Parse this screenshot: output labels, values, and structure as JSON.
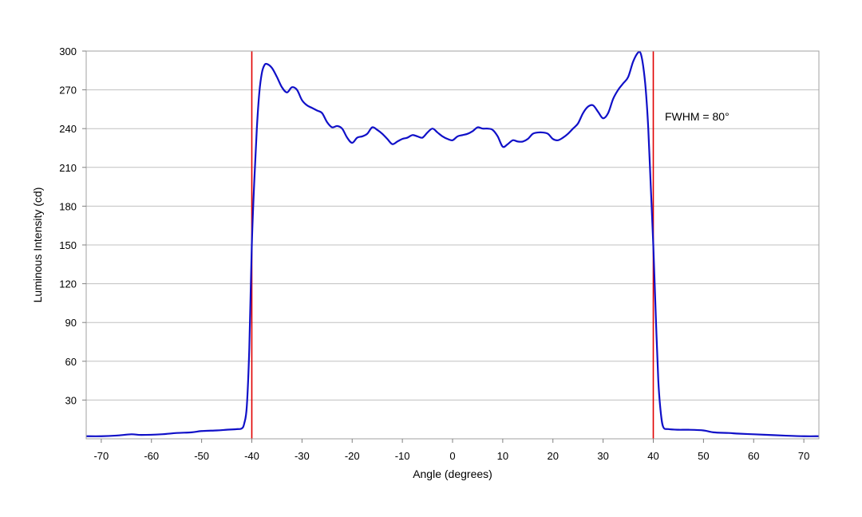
{
  "chart_data": {
    "type": "line",
    "xlabel": "Angle (degrees)",
    "ylabel": "Luminous Intensity (cd)",
    "xlim": [
      -73,
      73
    ],
    "ylim": [
      0,
      300
    ],
    "xticks": [
      -70,
      -60,
      -50,
      -40,
      -30,
      -20,
      -10,
      0,
      10,
      20,
      30,
      40,
      50,
      60,
      70
    ],
    "yticks": [
      30,
      60,
      90,
      120,
      150,
      180,
      210,
      240,
      270,
      300
    ],
    "grid": "horizontal",
    "annotation": "FWHM = 80°",
    "vlines": [
      -40,
      40
    ],
    "colors": {
      "series": "#1010c8",
      "vline": "#e00000",
      "grid": "#c0c0c0",
      "frame": "#a0a0a0"
    },
    "series": [
      {
        "points": [
          [
            -73,
            2
          ],
          [
            -70,
            2
          ],
          [
            -67,
            2.5
          ],
          [
            -64,
            3.5
          ],
          [
            -62,
            3
          ],
          [
            -58,
            3.5
          ],
          [
            -55,
            4.5
          ],
          [
            -52,
            5
          ],
          [
            -50,
            6
          ],
          [
            -47,
            6.5
          ],
          [
            -45,
            7
          ],
          [
            -43,
            7.5
          ],
          [
            -42,
            8
          ],
          [
            -41.5,
            12
          ],
          [
            -41,
            25
          ],
          [
            -40.5,
            70
          ],
          [
            -40,
            150
          ],
          [
            -39.5,
            200
          ],
          [
            -39,
            240
          ],
          [
            -38.5,
            268
          ],
          [
            -38,
            283
          ],
          [
            -37.5,
            289
          ],
          [
            -37,
            290
          ],
          [
            -36,
            287
          ],
          [
            -35,
            280
          ],
          [
            -34,
            272
          ],
          [
            -33,
            268
          ],
          [
            -32,
            272
          ],
          [
            -31,
            270
          ],
          [
            -30,
            262
          ],
          [
            -29,
            258
          ],
          [
            -28,
            256
          ],
          [
            -27,
            254
          ],
          [
            -26,
            252
          ],
          [
            -25,
            245
          ],
          [
            -24,
            241
          ],
          [
            -23,
            242
          ],
          [
            -22,
            240
          ],
          [
            -21,
            233
          ],
          [
            -20,
            229
          ],
          [
            -19,
            233
          ],
          [
            -18,
            234
          ],
          [
            -17,
            236
          ],
          [
            -16,
            241
          ],
          [
            -15,
            239
          ],
          [
            -14,
            236
          ],
          [
            -13,
            232
          ],
          [
            -12,
            228
          ],
          [
            -11,
            230
          ],
          [
            -10,
            232
          ],
          [
            -9,
            233
          ],
          [
            -8,
            235
          ],
          [
            -7,
            234
          ],
          [
            -6,
            233
          ],
          [
            -5,
            237
          ],
          [
            -4,
            240
          ],
          [
            -3,
            237
          ],
          [
            -2,
            234
          ],
          [
            -1,
            232
          ],
          [
            0,
            231
          ],
          [
            1,
            234
          ],
          [
            2,
            235
          ],
          [
            3,
            236
          ],
          [
            4,
            238
          ],
          [
            5,
            241
          ],
          [
            6,
            240
          ],
          [
            7,
            240
          ],
          [
            8,
            239
          ],
          [
            9,
            234
          ],
          [
            10,
            226
          ],
          [
            11,
            228
          ],
          [
            12,
            231
          ],
          [
            13,
            230
          ],
          [
            14,
            230
          ],
          [
            15,
            232
          ],
          [
            16,
            236
          ],
          [
            17,
            237
          ],
          [
            18,
            237
          ],
          [
            19,
            236
          ],
          [
            20,
            232
          ],
          [
            21,
            231
          ],
          [
            22,
            233
          ],
          [
            23,
            236
          ],
          [
            24,
            240
          ],
          [
            25,
            244
          ],
          [
            26,
            252
          ],
          [
            27,
            257
          ],
          [
            28,
            258
          ],
          [
            29,
            253
          ],
          [
            30,
            248
          ],
          [
            31,
            252
          ],
          [
            32,
            263
          ],
          [
            33,
            270
          ],
          [
            34,
            275
          ],
          [
            35,
            280
          ],
          [
            36,
            292
          ],
          [
            37,
            299
          ],
          [
            37.5,
            298
          ],
          [
            38,
            288
          ],
          [
            38.5,
            270
          ],
          [
            39,
            240
          ],
          [
            39.5,
            195
          ],
          [
            40,
            150
          ],
          [
            40.5,
            95
          ],
          [
            41,
            45
          ],
          [
            41.5,
            20
          ],
          [
            42,
            9
          ],
          [
            43,
            7.5
          ],
          [
            45,
            7
          ],
          [
            47,
            7
          ],
          [
            50,
            6.5
          ],
          [
            52,
            5
          ],
          [
            55,
            4.5
          ],
          [
            57,
            4
          ],
          [
            60,
            3.5
          ],
          [
            63,
            3
          ],
          [
            66,
            2.5
          ],
          [
            70,
            2
          ],
          [
            73,
            2
          ]
        ]
      }
    ]
  }
}
